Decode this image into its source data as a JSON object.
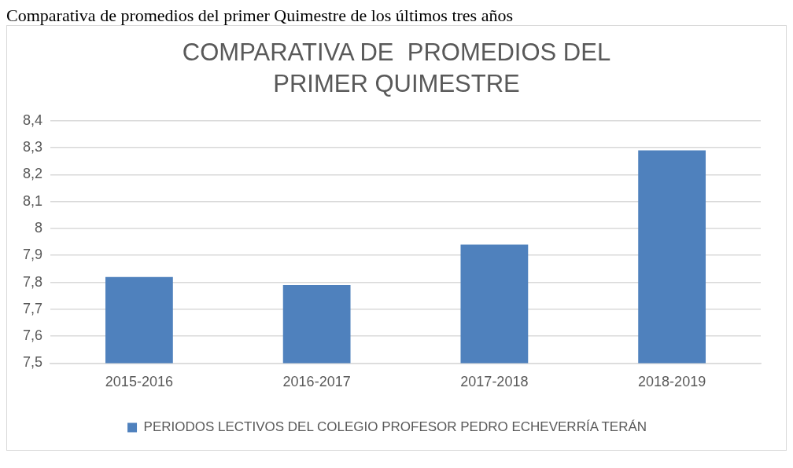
{
  "chart_data": {
    "type": "bar",
    "title": "COMPARATIVA DE  PROMEDIOS DEL PRIMER QUIMESTRE",
    "annotations": [
      "Comparativa de promedios del primer Quimestre de los últimos tres años"
    ],
    "categories": [
      "2015-2016",
      "2016-2017",
      "2017-2018",
      "2018-2019"
    ],
    "series": [
      {
        "name": "PERIODOS LECTIVOS DEL COLEGIO PROFESOR PEDRO ECHEVERRÍA TERÁN",
        "color": "#4f81bd",
        "values": [
          7.82,
          7.79,
          7.94,
          8.29
        ]
      }
    ],
    "ylim": [
      7.5,
      8.4
    ],
    "yticks": [
      {
        "value": 7.5,
        "label": "7,5"
      },
      {
        "value": 7.6,
        "label": "7,6"
      },
      {
        "value": 7.7,
        "label": "7,7"
      },
      {
        "value": 7.8,
        "label": "7,8"
      },
      {
        "value": 7.9,
        "label": "7,9"
      },
      {
        "value": 8,
        "label": "8"
      },
      {
        "value": 8.1,
        "label": "8,1"
      },
      {
        "value": 8.2,
        "label": "8,2"
      },
      {
        "value": 8.3,
        "label": "8,3"
      },
      {
        "value": 8.4,
        "label": "8,4"
      }
    ],
    "grid": "y",
    "legend": "bottom"
  }
}
